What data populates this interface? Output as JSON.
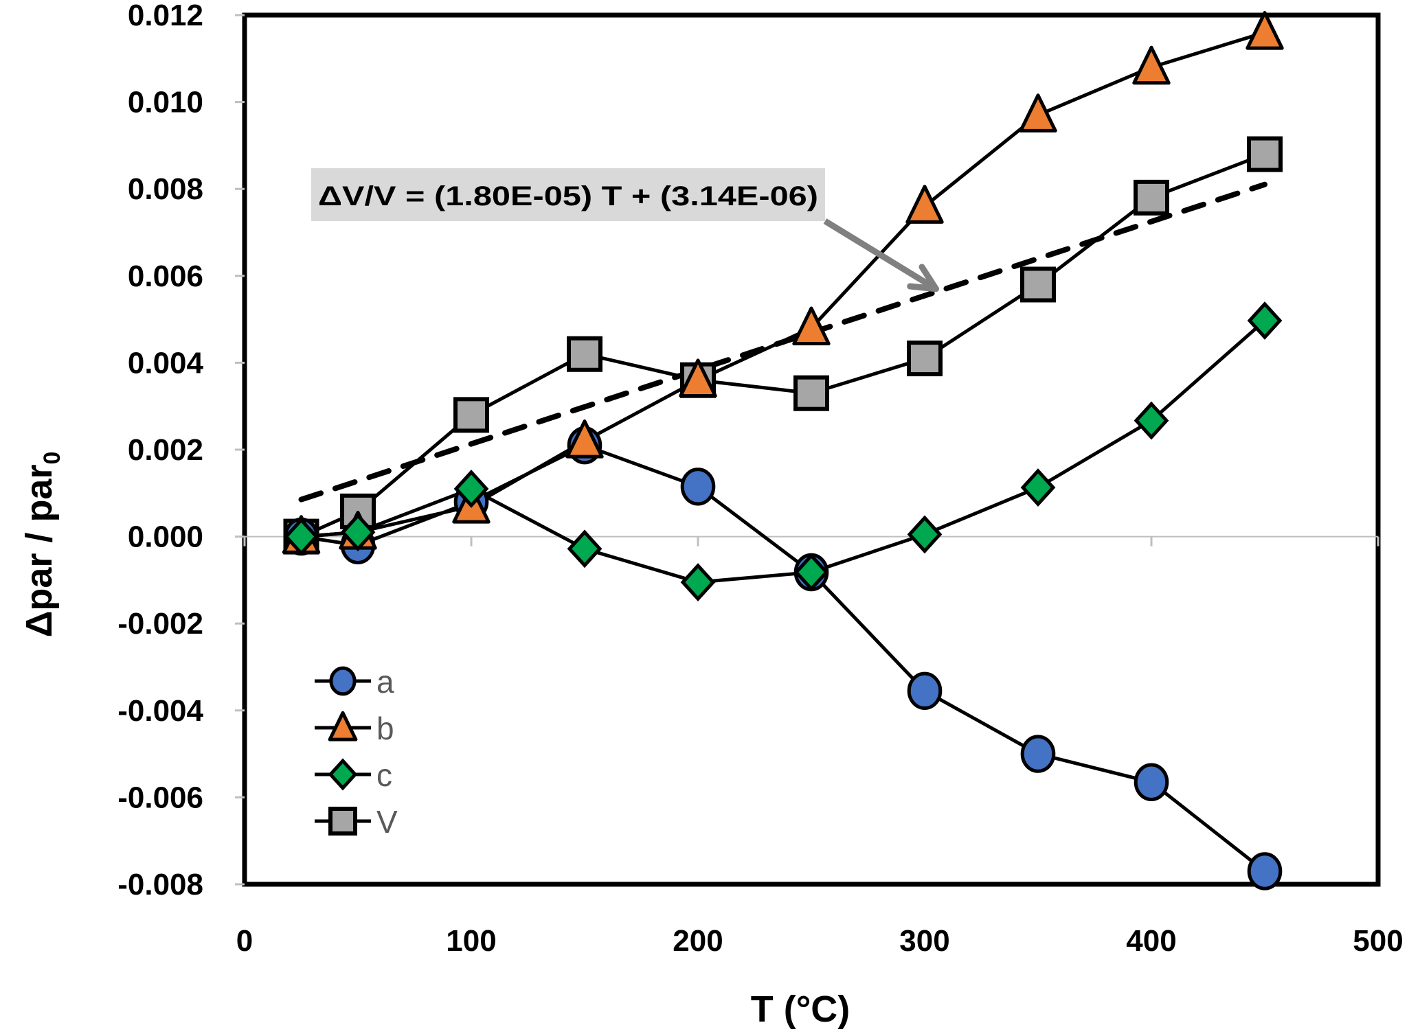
{
  "chart_data": {
    "type": "line",
    "title": "",
    "xlabel": "T (°C)",
    "ylabel": "Δpar / par",
    "ylabel_subscript": "0",
    "xlim": [
      0,
      500
    ],
    "ylim": [
      -0.008,
      0.012
    ],
    "x_ticks": [
      0,
      100,
      200,
      300,
      400,
      500
    ],
    "x_tick_labels": [
      "0",
      "100",
      "200",
      "300",
      "400",
      "500"
    ],
    "y_ticks": [
      0.012,
      0.01,
      0.008,
      0.006,
      0.004,
      0.002,
      0.0,
      -0.002,
      -0.004,
      -0.006,
      -0.008
    ],
    "y_tick_labels": [
      "0.012",
      "0.010",
      "0.008",
      "0.006",
      "0.004",
      "0.002",
      "0.000",
      "-0.002",
      "-0.004",
      "-0.006",
      "-0.008"
    ],
    "grid": false,
    "zero_line": true,
    "legend_position": "bottom-left",
    "x": [
      25,
      50,
      100,
      150,
      200,
      250,
      300,
      350,
      400,
      450
    ],
    "series": [
      {
        "name": "a",
        "marker": "circle",
        "color": "#4472C4",
        "values": [
          0.0,
          -0.0002,
          0.0008,
          0.0021,
          0.00115,
          -0.00082,
          -0.00355,
          -0.005,
          -0.00565,
          -0.0077
        ]
      },
      {
        "name": "b",
        "marker": "triangle",
        "color": "#ED7D31",
        "values": [
          0.0,
          0.0001,
          0.0007,
          0.0022,
          0.0036,
          0.0048,
          0.0076,
          0.0097,
          0.0108,
          0.0116
        ]
      },
      {
        "name": "c",
        "marker": "diamond",
        "color": "#00A84F",
        "values": [
          0.0,
          0.0001,
          0.0011,
          -0.00028,
          -0.00105,
          -0.00082,
          5e-05,
          0.00113,
          0.00267,
          0.00497
        ]
      },
      {
        "name": "V",
        "marker": "square",
        "color": "#A6A6A6",
        "values": [
          0.0,
          0.00058,
          0.0028,
          0.0042,
          0.0036,
          0.0033,
          0.0041,
          0.0058,
          0.0078,
          0.0088
        ]
      }
    ],
    "fit_line": {
      "name": "V linear fit",
      "style": "dashed",
      "slope": 1.8e-05,
      "intercept": 3.14e-06,
      "x_range": [
        25,
        450
      ]
    },
    "annotation": {
      "text": "ΔV/V = (1.80E-05) T + (3.14E-06)",
      "arrow_target": [
        305,
        0.0057
      ],
      "background": "#D9D9D9",
      "arrow_color": "#808080"
    }
  }
}
